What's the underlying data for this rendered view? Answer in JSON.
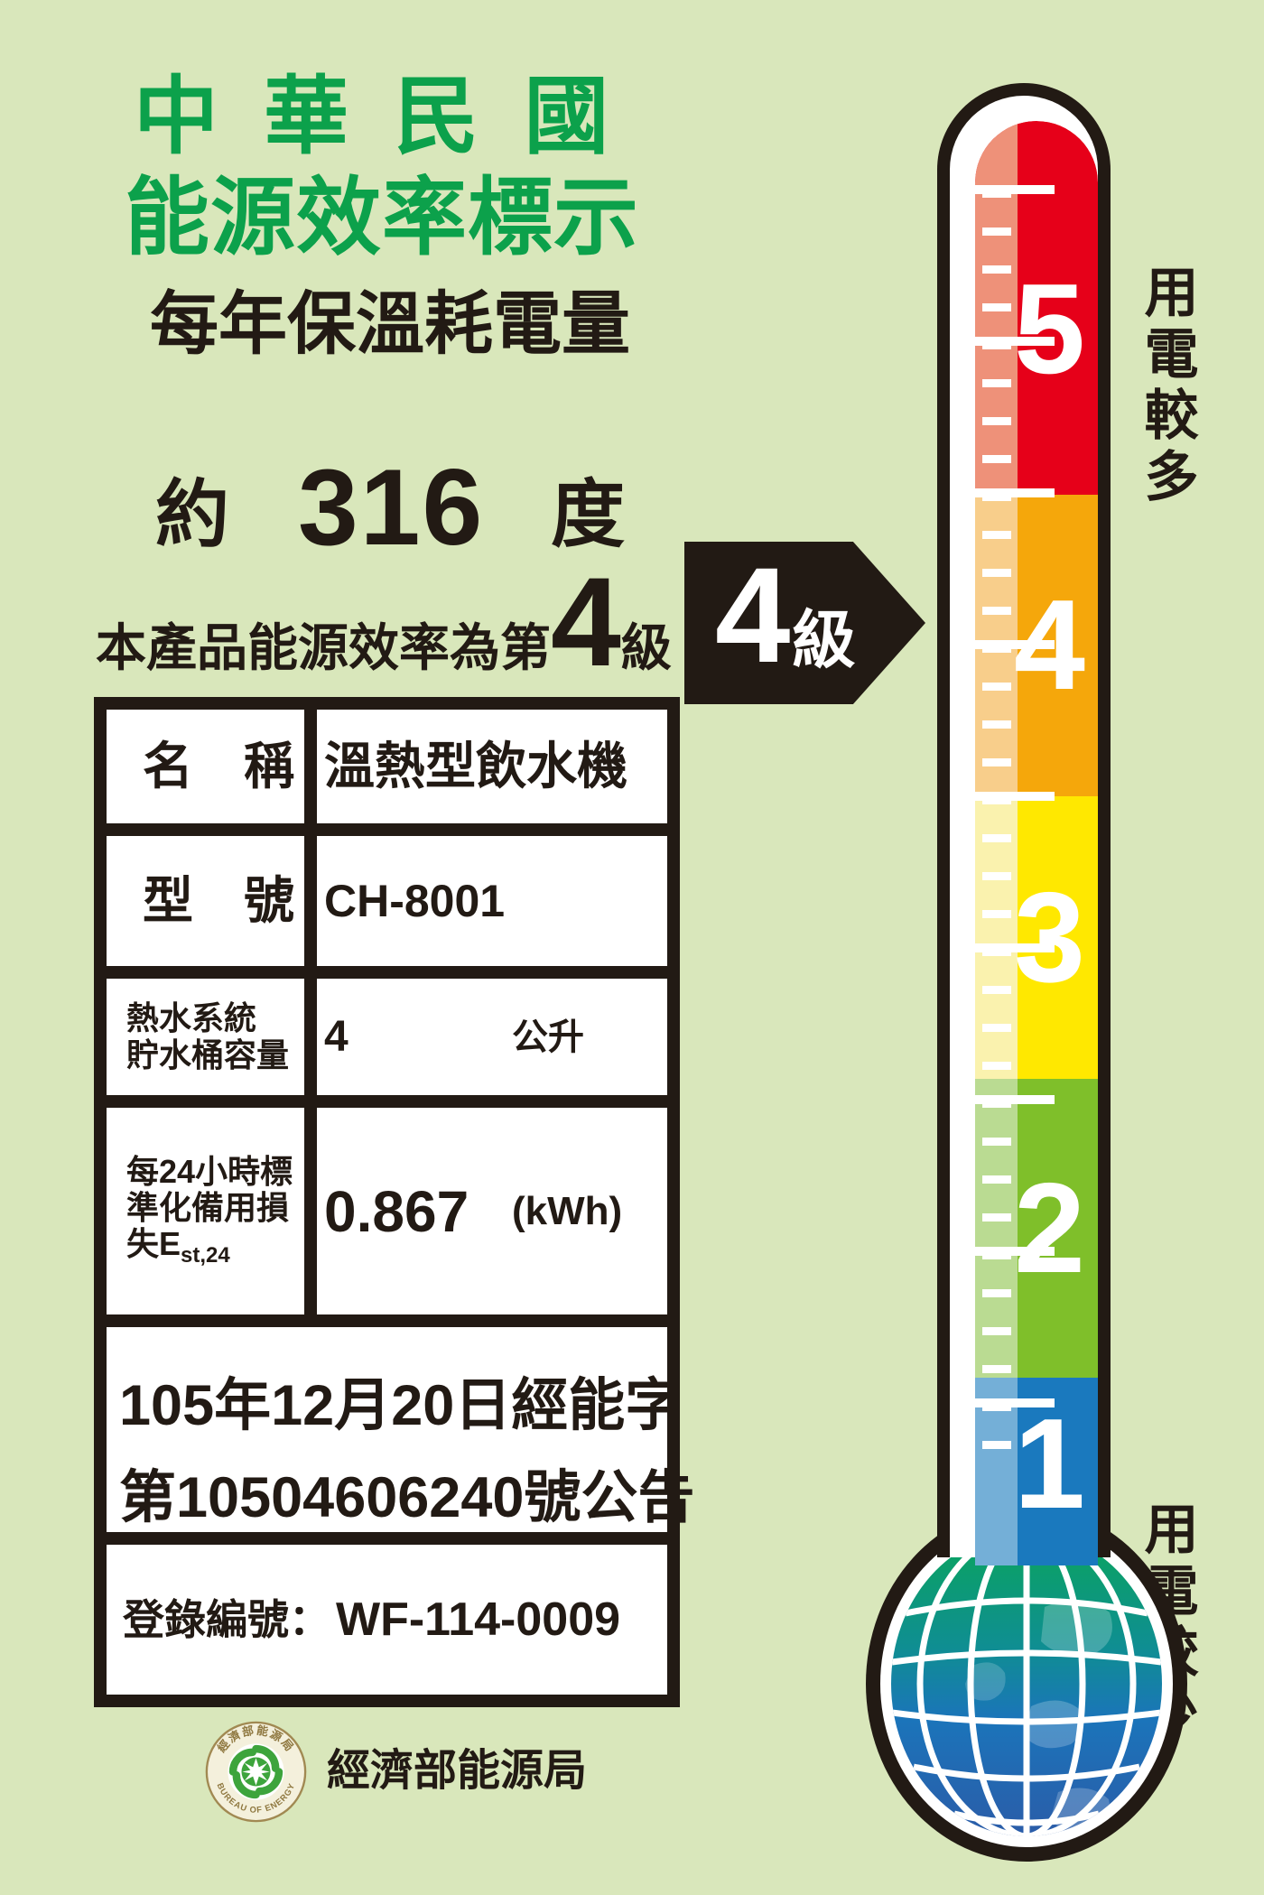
{
  "page": {
    "background_color": "#D9E7BB",
    "title_green": "#0CA14B",
    "ink_color": "#221A14"
  },
  "header": {
    "title_line1": "中 華 民 國",
    "title_line2": "能源效率標示",
    "subtitle": "每年保溫耗電量",
    "approx_prefix": "約",
    "consumption_value": "316",
    "consumption_unit": "度",
    "rating_prefix": "本產品能源效率為第",
    "rating_value": "4",
    "rating_suffix": "級"
  },
  "arrow_badge": {
    "level": "4",
    "unit": "級",
    "color": "#221A14"
  },
  "thermometer": {
    "scale_top_label": "用電較多",
    "scale_bottom_label": "用電較少",
    "levels": [
      {
        "label": "5",
        "color": "#E60019",
        "light": "#EE9179"
      },
      {
        "label": "4",
        "color": "#F5A70B",
        "light": "#F8CE8B"
      },
      {
        "label": "3",
        "color": "#FFE800",
        "light": "#FAF2AE"
      },
      {
        "label": "2",
        "color": "#7FBF2A",
        "light": "#BADB92"
      },
      {
        "label": "1",
        "color": "#1A79BE",
        "light": "#74AFD7"
      }
    ]
  },
  "table": {
    "rows": [
      {
        "label": "名　稱",
        "value": "溫熱型飲水機"
      },
      {
        "label": "型　號",
        "value": "CH-8001"
      },
      {
        "label_lines": [
          "熱水系統",
          "貯水桶容量"
        ],
        "value": "4",
        "unit": "公升"
      },
      {
        "label_lines": [
          "每24小時標",
          "準化備用損"
        ],
        "label_tail": "失E",
        "label_sub": "st,24",
        "value": "0.867",
        "unit": "(kWh)"
      },
      {
        "text_lines": [
          "105年12月20日經能字",
          "第10504606240號公告"
        ]
      },
      {
        "label": "登錄編號：",
        "value": "WF-114-0009"
      }
    ]
  },
  "footer": {
    "agency": "經濟部能源局",
    "seal_top_text": "經濟部能源局",
    "seal_bottom_text": "BUREAU OF ENERGY"
  }
}
